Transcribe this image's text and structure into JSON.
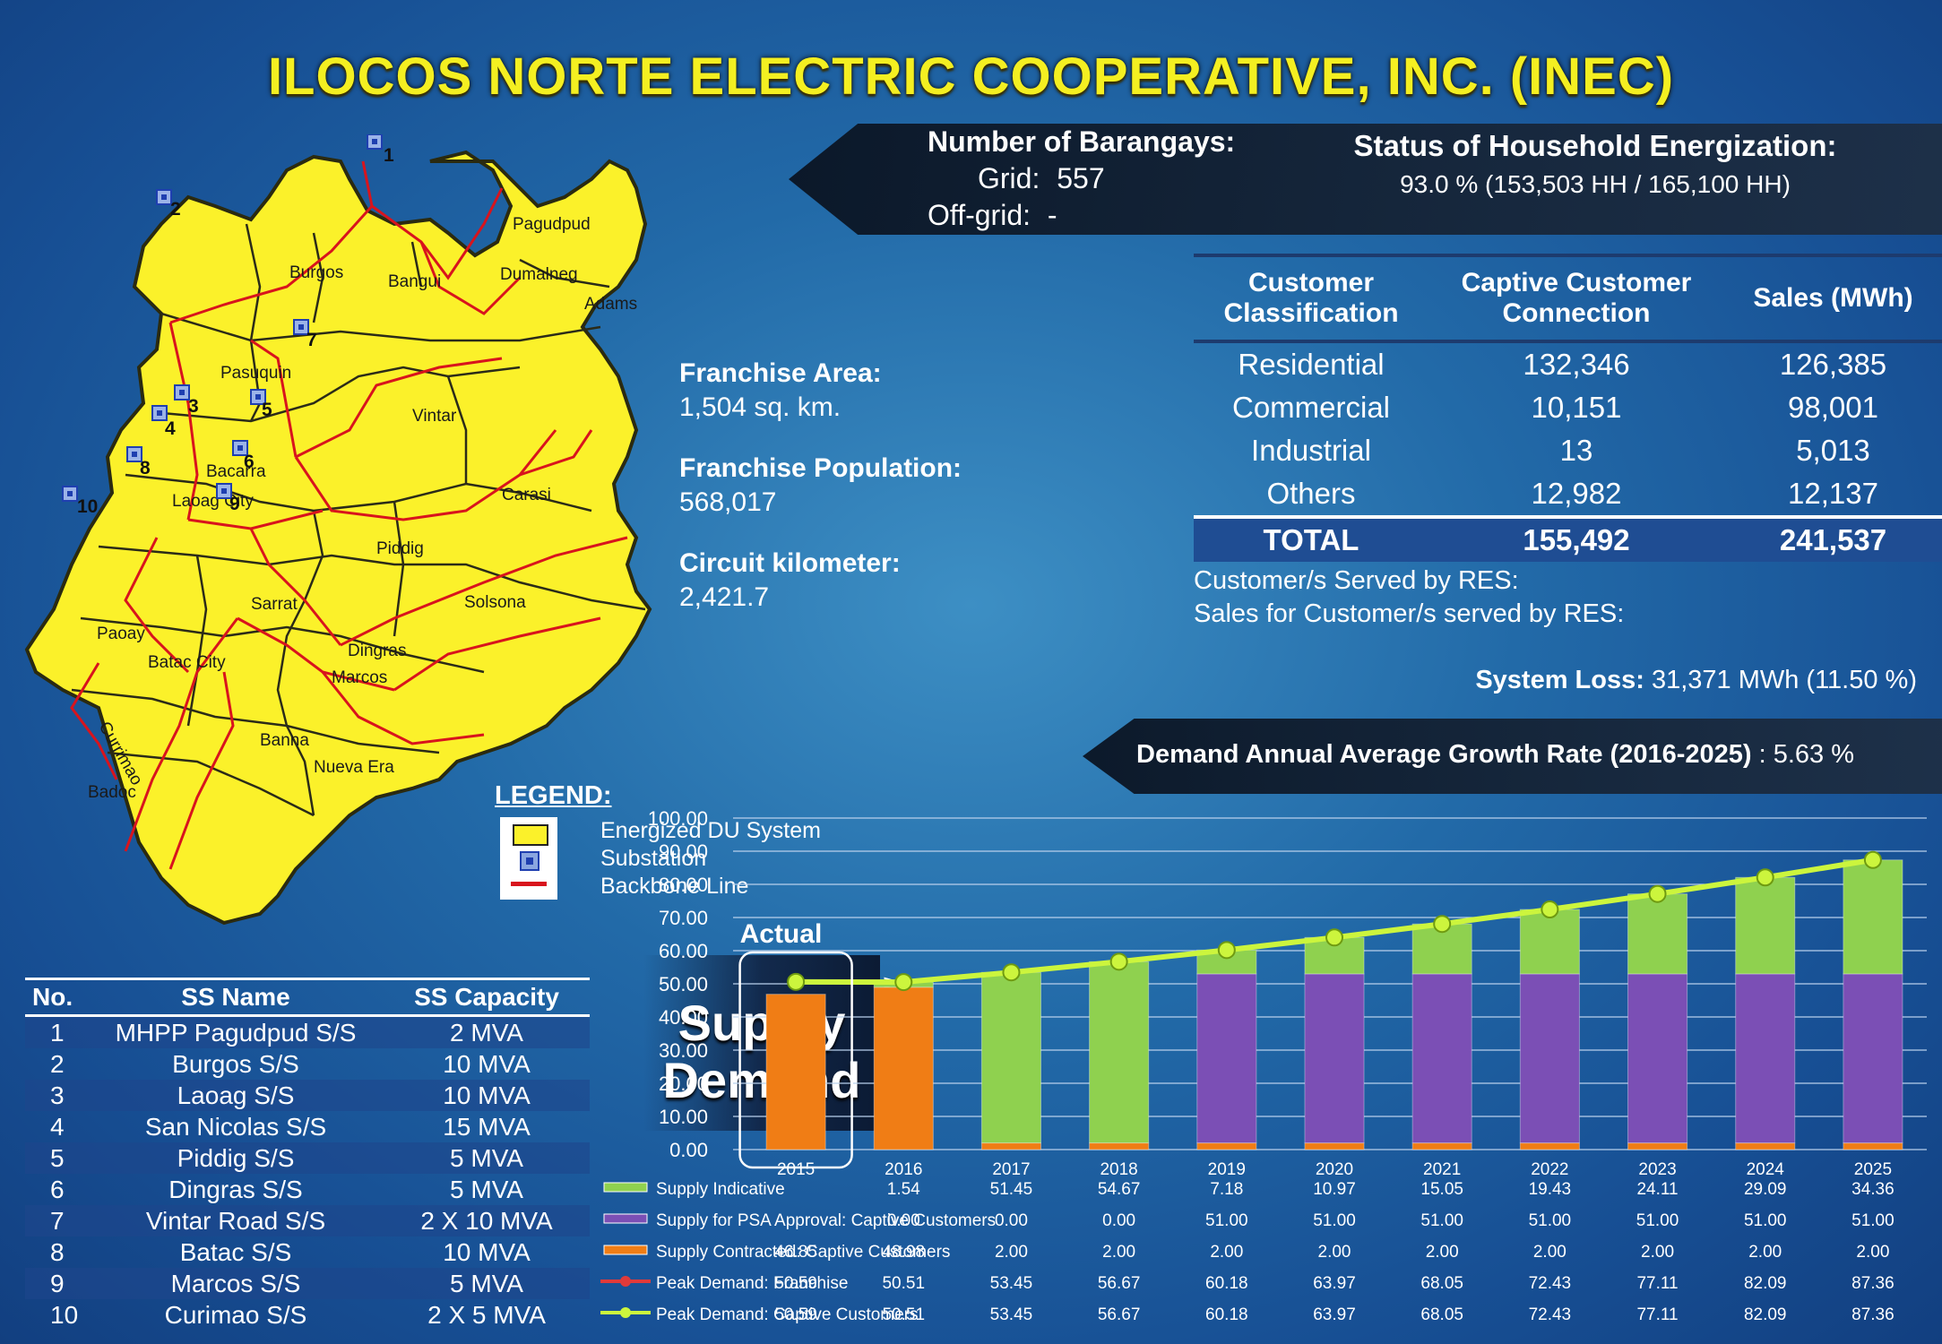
{
  "title": "ILOCOS NORTE ELECTRIC COOPERATIVE, INC. (INEC)",
  "barangays": {
    "heading": "Number of Barangays:",
    "grid_label": "Grid:",
    "grid_value": "557",
    "offgrid_label": "Off-grid:",
    "offgrid_value": "-"
  },
  "energization": {
    "heading": "Status of Household Energization:",
    "value": "93.0 % (153,503  HH /  165,100 HH)"
  },
  "franchise": {
    "area_label": "Franchise Area:",
    "area_value": "1,504 sq. km.",
    "population_label": "Franchise Population:",
    "population_value": "568,017",
    "circuit_label": "Circuit kilometer:",
    "circuit_value": "2,421.7"
  },
  "customer_table": {
    "headers": [
      "Customer Classification",
      "Captive Customer Connection",
      "Sales (MWh)"
    ],
    "rows": [
      [
        "Residential",
        "132,346",
        "126,385"
      ],
      [
        "Commercial",
        "10,151",
        "98,001"
      ],
      [
        "Industrial",
        "13",
        "5,013"
      ],
      [
        "Others",
        "12,982",
        "12,137"
      ]
    ],
    "total": [
      "TOTAL",
      "155,492",
      "241,537"
    ]
  },
  "res": {
    "served": "Customer/s Served by RES:",
    "sales": "Sales for Customer/s served by RES:"
  },
  "system_loss": {
    "label": "System Loss:",
    "value": "31,371 MWh (11.50 %)"
  },
  "growth": {
    "label": "Demand Annual Average Growth Rate (2016-2025)",
    "value": ": 5.63 %"
  },
  "legend": {
    "title": "LEGEND:",
    "items": [
      "Energized DU System",
      "Substation",
      "Backbone Line"
    ]
  },
  "map_labels": [
    "Pagudpud",
    "Burgos",
    "Bangui",
    "Dumalneg",
    "Adams",
    "Pasuquin",
    "Vintar",
    "Bacarra",
    "Laoag City",
    "Carasi",
    "Piddig",
    "Sarrat",
    "Solsona",
    "Paoay",
    "Batac City",
    "Dingras",
    "Marcos",
    "Currimao",
    "Banna",
    "Nueva Era",
    "Badoc"
  ],
  "map_ss_numbers": [
    "1",
    "2",
    "3",
    "4",
    "5",
    "6",
    "7",
    "8",
    "9",
    "10"
  ],
  "ss_table": {
    "headers": [
      "No.",
      "SS Name",
      "SS Capacity"
    ],
    "rows": [
      [
        "1",
        "MHPP Pagudpud S/S",
        "2 MVA"
      ],
      [
        "2",
        "Burgos S/S",
        "10 MVA"
      ],
      [
        "3",
        "Laoag S/S",
        "10 MVA"
      ],
      [
        "4",
        "San Nicolas S/S",
        "15 MVA"
      ],
      [
        "5",
        "Piddig S/S",
        "5 MVA"
      ],
      [
        "6",
        "Dingras S/S",
        "5 MVA"
      ],
      [
        "7",
        "Vintar Road S/S",
        "2 X 10 MVA"
      ],
      [
        "8",
        "Batac S/S",
        "10 MVA"
      ],
      [
        "9",
        "Marcos S/S",
        "5 MVA"
      ],
      [
        "10",
        "Curimao S/S",
        "2 X 5 MVA"
      ]
    ]
  },
  "supply_demand": {
    "line1": "Supply",
    "line2": "Demand"
  },
  "colors": {
    "indicative": "#8fd14f",
    "psa": "#7b4fb5",
    "contracted": "#f07d15",
    "line": "#ccf53d",
    "title": "#f4ef21"
  },
  "chart_data": {
    "type": "bar",
    "ylabel": "MW",
    "ylim": [
      0,
      100
    ],
    "yticks": [
      "0.00",
      "10.00",
      "20.00",
      "30.00",
      "40.00",
      "50.00",
      "60.00",
      "70.00",
      "80.00",
      "90.00",
      "100.00"
    ],
    "annotation": "Actual",
    "categories": [
      "2015",
      "2016",
      "2017",
      "2018",
      "2019",
      "2020",
      "2021",
      "2022",
      "2023",
      "2024",
      "2025"
    ],
    "series": [
      {
        "name": "Supply Indicative",
        "kind": "stack",
        "values": [
          null,
          1.54,
          51.45,
          54.67,
          7.18,
          10.97,
          15.05,
          19.43,
          24.11,
          29.09,
          34.36
        ],
        "display": [
          "",
          "1.54",
          "51.45",
          "54.67",
          "7.18",
          "10.97",
          "15.05",
          "19.43",
          "24.11",
          "29.09",
          "34.36"
        ]
      },
      {
        "name": "Supply for PSA Approval:  Captive Customers",
        "kind": "stack",
        "values": [
          null,
          0,
          0,
          0,
          51,
          51,
          51,
          51,
          51,
          51,
          51
        ],
        "display": [
          "",
          "0.00",
          "0.00",
          "0.00",
          "51.00",
          "51.00",
          "51.00",
          "51.00",
          "51.00",
          "51.00",
          "51.00"
        ]
      },
      {
        "name": "Supply Contracted:  Captive Customers",
        "kind": "stack",
        "values": [
          46.85,
          48.98,
          2,
          2,
          2,
          2,
          2,
          2,
          2,
          2,
          2
        ],
        "display": [
          "46.85",
          "48.98",
          "2.00",
          "2.00",
          "2.00",
          "2.00",
          "2.00",
          "2.00",
          "2.00",
          "2.00",
          "2.00"
        ]
      },
      {
        "name": "Peak Demand:  Franchise",
        "kind": "line",
        "values": [
          50.59,
          50.51,
          53.45,
          56.67,
          60.18,
          63.97,
          68.05,
          72.43,
          77.11,
          82.09,
          87.36
        ],
        "display": [
          "50.59",
          "50.51",
          "53.45",
          "56.67",
          "60.18",
          "63.97",
          "68.05",
          "72.43",
          "77.11",
          "82.09",
          "87.36"
        ]
      },
      {
        "name": "Peak Demand:  Captive Customers",
        "kind": "line",
        "values": [
          50.59,
          50.51,
          53.45,
          56.67,
          60.18,
          63.97,
          68.05,
          72.43,
          77.11,
          82.09,
          87.36
        ],
        "display": [
          "50.59",
          "50.51",
          "53.45",
          "56.67",
          "60.18",
          "63.97",
          "68.05",
          "72.43",
          "77.11",
          "82.09",
          "87.36"
        ]
      }
    ]
  }
}
